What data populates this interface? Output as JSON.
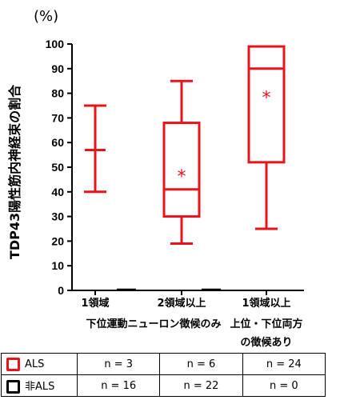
{
  "chart_data": {
    "type": "boxplot",
    "unit_label": "(%)",
    "ylabel": "TDP43陽性筋内神経束の割合",
    "ylim": [
      0,
      100
    ],
    "yticks": [
      "0",
      "10",
      "20",
      "30",
      "40",
      "50",
      "60",
      "70",
      "80",
      "90",
      "100"
    ],
    "categories": [
      [
        "1領域",
        "下位運動ニューロン徴候のみ"
      ],
      [
        "2領域以上"
      ],
      [
        "1領域以上",
        "上位・下位両方",
        "の徴候あり"
      ]
    ],
    "series": [
      {
        "name": "ALS",
        "color": "#e8141a",
        "boxes": [
          {
            "min": 40,
            "q1": 57,
            "median": 57,
            "q3": 57,
            "max": 75,
            "marker": "+"
          },
          {
            "min": 19,
            "q1": 30,
            "median": 41,
            "q3": 68,
            "max": 85,
            "marker": "*"
          },
          {
            "min": 25,
            "q1": 52,
            "median": 90,
            "q3": 99,
            "max": 99,
            "marker": "*"
          }
        ]
      },
      {
        "name": "非ALS",
        "color": "#000000",
        "boxes": [
          {
            "min": 0,
            "q1": 0,
            "median": 0,
            "q3": 0,
            "max": 0
          },
          {
            "min": 0,
            "q1": 0,
            "median": 0,
            "q3": 0,
            "max": 0
          },
          null
        ]
      }
    ],
    "table": {
      "rows": [
        {
          "label": "ALS",
          "color": "#e8141a",
          "values": [
            "n = 3",
            "n = 6",
            "n = 24"
          ]
        },
        {
          "label": "非ALS",
          "color": "#000000",
          "values": [
            "n = 16",
            "n = 22",
            "n = 0"
          ]
        }
      ]
    }
  }
}
